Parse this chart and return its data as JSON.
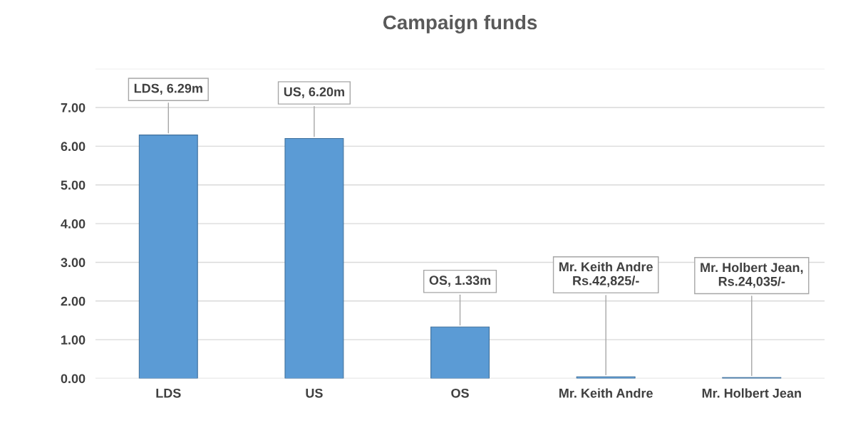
{
  "chart_data": {
    "type": "bar",
    "title": "Campaign funds",
    "categories": [
      "LDS",
      "US",
      "OS",
      "Mr. Keith Andre",
      "Mr. Holbert Jean"
    ],
    "values": [
      6.29,
      6.2,
      1.33,
      0.042825,
      0.024035
    ],
    "value_labels": [
      "LDS, 6.29m",
      "US, 6.20m",
      "OS, 1.33m",
      "Mr. Keith Andre\nRs.42,825/-",
      "Mr. Holbert Jean,\nRs.24,035/-"
    ],
    "color": "#5b9bd5",
    "ylim": [
      0,
      8
    ],
    "yticks": [
      {
        "value": 0,
        "label": "0.00"
      },
      {
        "value": 1,
        "label": "1.00"
      },
      {
        "value": 2,
        "label": "2.00"
      },
      {
        "value": 3,
        "label": "3.00"
      },
      {
        "value": 4,
        "label": "4.00"
      },
      {
        "value": 5,
        "label": "5.00"
      },
      {
        "value": 6,
        "label": "6.00"
      },
      {
        "value": 7,
        "label": "7.00"
      },
      {
        "value": 8,
        "label": null
      }
    ],
    "grid": "y",
    "legend": false
  }
}
